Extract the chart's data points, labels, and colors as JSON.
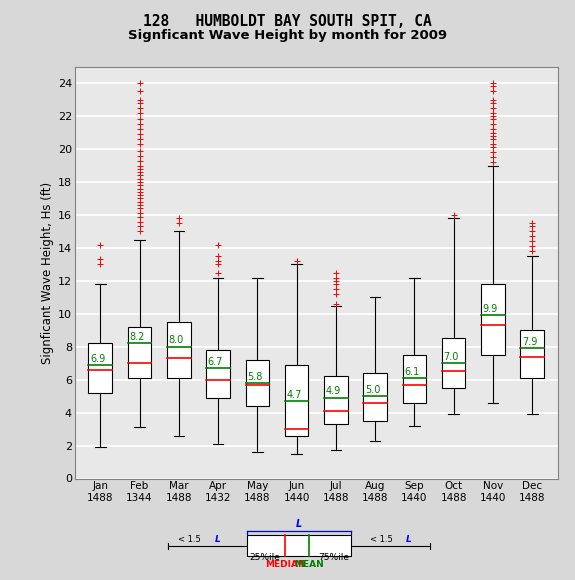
{
  "title1": "128   HUMBOLDT BAY SOUTH SPIT, CA",
  "title2": "Signficant Wave Height by month for 2009",
  "ylabel": "Signficant Wave Height, Hs (ft)",
  "months": [
    "Jan",
    "Feb",
    "Mar",
    "Apr",
    "May",
    "Jun",
    "Jul",
    "Aug",
    "Sep",
    "Oct",
    "Nov",
    "Dec"
  ],
  "counts": [
    1488,
    1344,
    1488,
    1432,
    1488,
    1440,
    1488,
    1488,
    1440,
    1488,
    1440,
    1488
  ],
  "means": [
    6.9,
    8.2,
    8.0,
    6.7,
    5.8,
    4.7,
    4.9,
    5.0,
    6.1,
    7.0,
    9.9,
    7.9
  ],
  "medians": [
    6.6,
    7.0,
    7.3,
    6.0,
    5.7,
    3.0,
    4.1,
    4.6,
    5.7,
    6.5,
    9.3,
    7.4
  ],
  "q1": [
    5.2,
    6.1,
    6.1,
    4.9,
    4.4,
    2.6,
    3.3,
    3.5,
    4.6,
    5.5,
    7.5,
    6.1
  ],
  "q3": [
    8.2,
    9.2,
    9.5,
    7.8,
    7.2,
    6.9,
    6.2,
    6.4,
    7.5,
    8.5,
    11.8,
    9.0
  ],
  "whisker_low": [
    1.9,
    3.1,
    2.6,
    2.1,
    1.6,
    1.5,
    1.7,
    2.3,
    3.2,
    3.9,
    4.6,
    3.9
  ],
  "whisker_high": [
    11.8,
    14.5,
    15.0,
    12.2,
    12.2,
    13.0,
    10.5,
    11.0,
    12.2,
    15.8,
    19.0,
    13.5
  ],
  "outliers": [
    [
      13.0,
      13.3,
      14.2
    ],
    [
      15.0,
      15.3,
      15.6,
      15.9,
      16.1,
      16.4,
      16.6,
      16.8,
      17.0,
      17.2,
      17.4,
      17.6,
      17.8,
      18.0,
      18.2,
      18.4,
      18.6,
      18.8,
      19.0,
      19.3,
      19.6,
      19.9,
      20.3,
      20.6,
      20.9,
      21.2,
      21.5,
      21.8,
      22.2,
      22.5,
      22.8,
      23.0,
      23.5,
      24.0
    ],
    [
      15.5,
      15.8
    ],
    [
      12.5,
      13.0,
      13.2,
      13.5,
      14.2
    ],
    [],
    [
      13.2
    ],
    [
      10.6,
      11.2,
      11.5,
      11.8,
      12.0,
      12.2,
      12.5
    ],
    [],
    [],
    [
      16.0
    ],
    [
      19.2,
      19.5,
      19.8,
      20.1,
      20.3,
      20.6,
      20.8,
      21.0,
      21.2,
      21.5,
      21.8,
      22.0,
      22.2,
      22.5,
      22.8,
      23.0,
      23.5,
      23.8,
      24.0
    ],
    [
      13.8,
      14.1,
      14.4,
      14.7,
      15.0,
      15.3,
      15.5
    ]
  ],
  "bg_color": "#d8d8d8",
  "plot_bg": "#e8e8e8",
  "grid_color": "#ffffff",
  "box_facecolor": "white",
  "box_edgecolor": "black",
  "median_color": "red",
  "mean_color": "green",
  "outlier_color": "red",
  "whisker_color": "black",
  "ylim": [
    0,
    25
  ],
  "yticks": [
    0,
    2,
    4,
    6,
    8,
    10,
    12,
    14,
    16,
    18,
    20,
    22,
    24
  ],
  "box_width": 0.6
}
